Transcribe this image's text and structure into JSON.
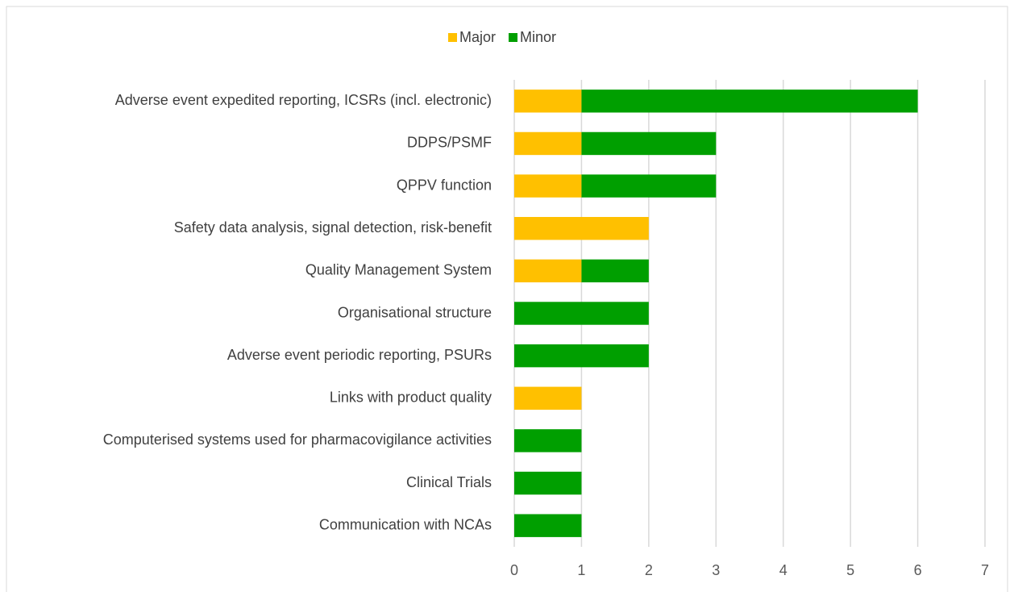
{
  "chart_data": {
    "type": "bar",
    "orientation": "horizontal",
    "stacked": true,
    "categories": [
      "Adverse event expedited reporting, ICSRs (incl. electronic)",
      "DDPS/PSMF",
      "QPPV function",
      "Safety data analysis, signal detection, risk-benefit",
      "Quality Management System",
      "Organisational structure",
      "Adverse event periodic reporting, PSURs",
      "Links with product quality",
      "Computerised systems used for pharmacovigilance activities",
      "Clinical Trials",
      "Communication with NCAs"
    ],
    "series": [
      {
        "name": "Major",
        "color": "#ffc000",
        "values": [
          1,
          1,
          1,
          2,
          1,
          0,
          0,
          1,
          0,
          0,
          0
        ]
      },
      {
        "name": "Minor",
        "color": "#009f00",
        "values": [
          5,
          2,
          2,
          0,
          1,
          2,
          2,
          0,
          1,
          1,
          1
        ]
      }
    ],
    "xlim": [
      0,
      7
    ],
    "xticks": [
      0,
      1,
      2,
      3,
      4,
      5,
      6,
      7
    ],
    "grid": true,
    "legend": "top"
  }
}
